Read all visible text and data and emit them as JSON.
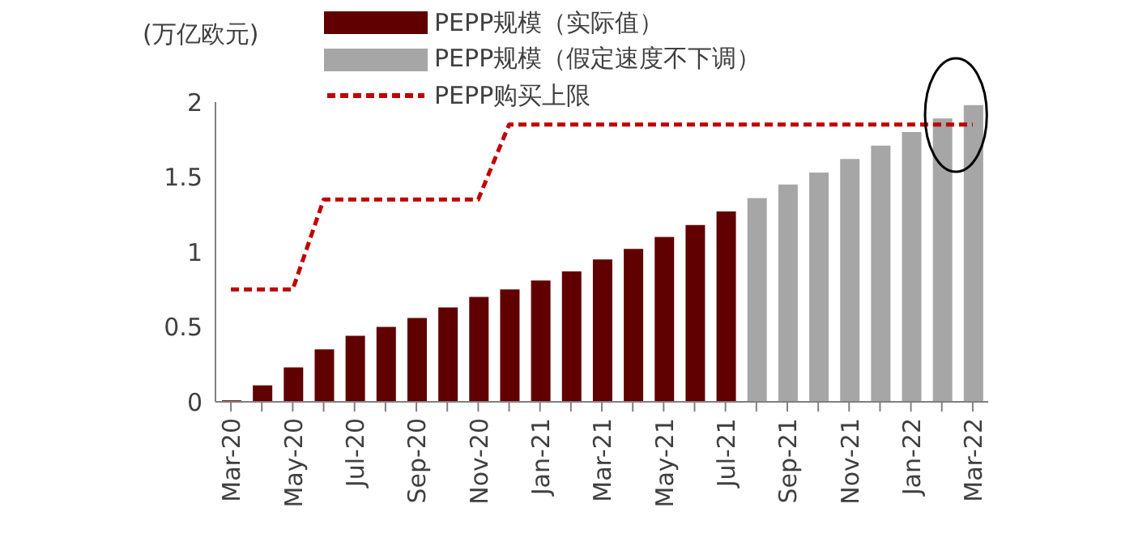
{
  "chart_data": {
    "type": "bar",
    "stacked": true,
    "ylabel": "(万亿欧元)",
    "categories": [
      "Mar-20",
      null,
      "May-20",
      null,
      "Jul-20",
      null,
      "Sep-20",
      null,
      "Nov-20",
      null,
      "Jan-21",
      null,
      "Mar-21",
      null,
      "May-21",
      null,
      "Jul-21",
      null,
      "Sep-21",
      null,
      "Nov-21",
      null,
      "Jan-22",
      null,
      "Mar-22"
    ],
    "series": [
      {
        "name": "PEPP规模（实际值）",
        "color": "#600000",
        "values": [
          0.01,
          0.11,
          0.23,
          0.35,
          0.44,
          0.5,
          0.56,
          0.63,
          0.7,
          0.75,
          0.81,
          0.87,
          0.95,
          1.02,
          1.1,
          1.18,
          1.27,
          null,
          null,
          null,
          null,
          null,
          null,
          null,
          null
        ]
      },
      {
        "name": "PEPP规模（假定速度不下调）",
        "color": "#a6a6a6",
        "values": [
          null,
          null,
          null,
          null,
          null,
          null,
          null,
          null,
          null,
          null,
          null,
          null,
          null,
          null,
          null,
          null,
          null,
          1.36,
          1.45,
          1.53,
          1.62,
          1.71,
          1.8,
          1.89,
          1.98
        ]
      },
      {
        "name": "PEPP购买上限",
        "type": "line",
        "color": "#c00000",
        "line_style": "dashed",
        "marker": "none",
        "values": [
          0.75,
          0.75,
          0.75,
          1.35,
          1.35,
          1.35,
          1.35,
          1.35,
          1.35,
          1.85,
          1.85,
          1.85,
          1.85,
          1.85,
          1.85,
          1.85,
          1.85,
          1.85,
          1.85,
          1.85,
          1.85,
          1.85,
          1.85,
          1.85,
          1.85
        ]
      }
    ],
    "ylim": [
      0,
      2
    ],
    "yticks": [
      0,
      0.5,
      1,
      1.5,
      2
    ],
    "legend": "top"
  }
}
